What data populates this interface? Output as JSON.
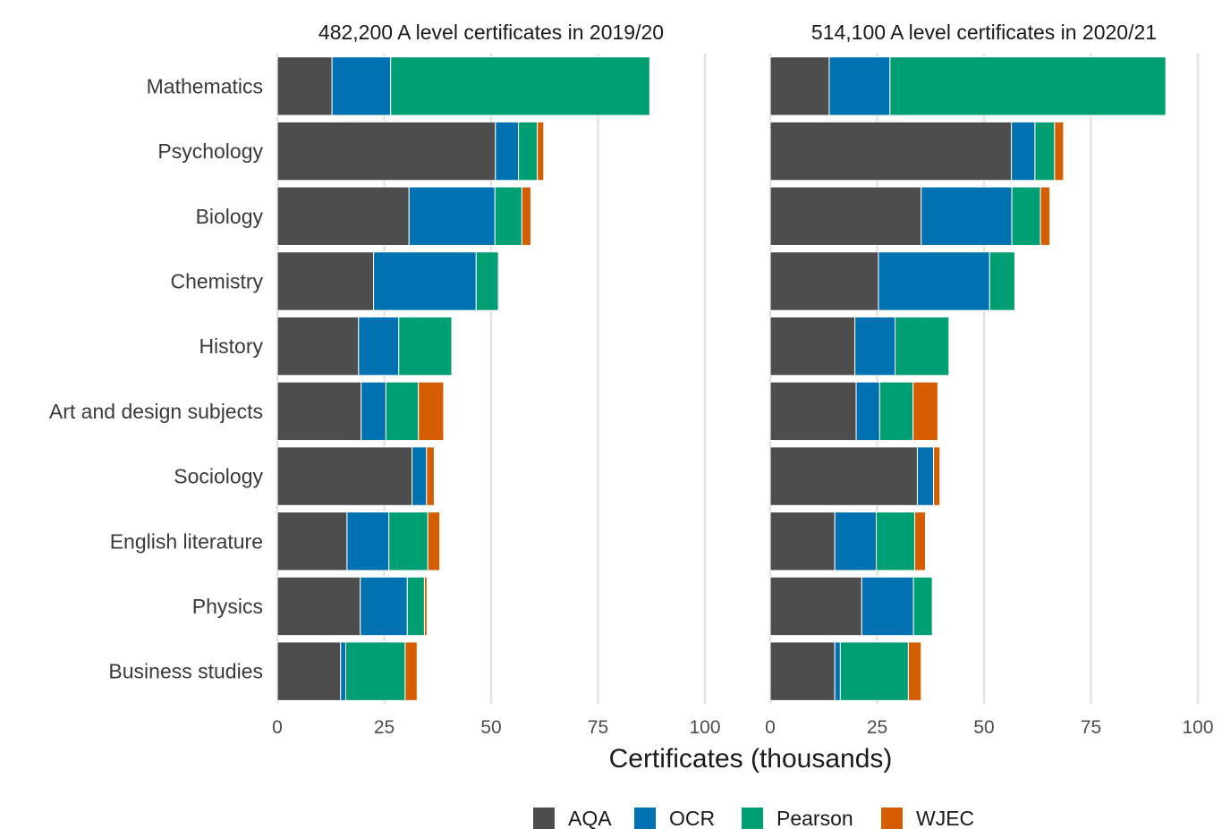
{
  "chart_data": {
    "type": "bar",
    "orientation": "horizontal",
    "stacked": true,
    "xlabel": "Certificates (thousands)",
    "xlim": [
      0,
      100
    ],
    "xticks": [
      "0",
      "25",
      "50",
      "75",
      "100"
    ],
    "grid": true,
    "legend_position": "bottom",
    "categories": [
      "Mathematics",
      "Psychology",
      "Biology",
      "Chemistry",
      "History",
      "Art and design subjects",
      "Sociology",
      "English literature",
      "Physics",
      "Business studies"
    ],
    "series_names": [
      "AQA",
      "OCR",
      "Pearson",
      "WJEC"
    ],
    "series_colors": [
      "#4d4d4d",
      "#0072b2",
      "#009e73",
      "#d55e00"
    ],
    "panels": [
      {
        "title": "482,200 A level certificates in 2019/20",
        "series": [
          {
            "name": "AQA",
            "values": [
              12.8,
              51.0,
              30.8,
              22.5,
              19.0,
              19.6,
              31.5,
              16.3,
              19.4,
              14.8
            ]
          },
          {
            "name": "OCR",
            "values": [
              13.7,
              5.4,
              20.1,
              24.0,
              9.4,
              5.8,
              3.4,
              9.8,
              11.0,
              1.2
            ]
          },
          {
            "name": "Pearson",
            "values": [
              60.6,
              4.4,
              6.3,
              5.2,
              12.4,
              7.6,
              0.0,
              9.1,
              4.0,
              13.9
            ]
          },
          {
            "name": "WJEC",
            "values": [
              0.0,
              1.5,
              2.1,
              0.0,
              0.0,
              5.9,
              1.8,
              2.8,
              0.6,
              2.8
            ]
          }
        ]
      },
      {
        "title": "514,100 A level certificates in 2020/21",
        "series": [
          {
            "name": "AQA",
            "values": [
              13.8,
              56.4,
              35.3,
              25.3,
              19.8,
              20.1,
              34.4,
              15.1,
              21.4,
              15.1
            ]
          },
          {
            "name": "OCR",
            "values": [
              14.2,
              5.5,
              21.2,
              26.0,
              9.4,
              5.5,
              3.8,
              9.7,
              12.1,
              1.3
            ]
          },
          {
            "name": "Pearson",
            "values": [
              64.5,
              4.6,
              6.7,
              5.9,
              12.6,
              7.8,
              0.0,
              9.0,
              4.4,
              15.9
            ]
          },
          {
            "name": "WJEC",
            "values": [
              0.0,
              2.1,
              2.2,
              0.0,
              0.0,
              5.8,
              1.5,
              2.5,
              0.0,
              3.0
            ]
          }
        ]
      }
    ]
  }
}
